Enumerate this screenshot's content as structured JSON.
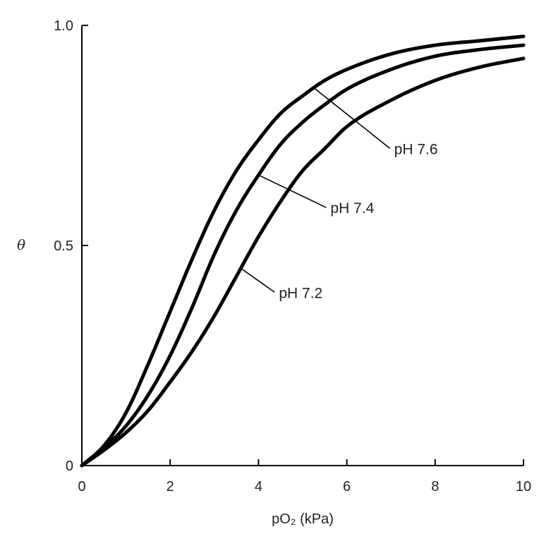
{
  "chart_data": {
    "type": "line",
    "xlabel": "pO₂ (kPa)",
    "ylabel": "θ",
    "xlim": [
      0,
      10
    ],
    "ylim": [
      0,
      1
    ],
    "x_ticks": [
      0,
      2,
      4,
      6,
      8,
      10
    ],
    "x_tick_labels": [
      "0",
      "2",
      "4",
      "6",
      "8",
      "10"
    ],
    "y_ticks": [
      0,
      0.5,
      1.0
    ],
    "y_tick_labels": [
      "0",
      "0.5",
      "1.0"
    ],
    "grid": false,
    "legend": "none",
    "series": [
      {
        "name": "pH 7.6",
        "x": [
          0,
          0.5,
          1,
          1.5,
          2,
          2.5,
          3,
          3.5,
          4,
          4.5,
          5,
          5.5,
          6,
          7,
          8,
          9,
          10
        ],
        "y": [
          0,
          0.045,
          0.12,
          0.23,
          0.35,
          0.47,
          0.58,
          0.67,
          0.74,
          0.8,
          0.84,
          0.875,
          0.9,
          0.935,
          0.955,
          0.965,
          0.975
        ]
      },
      {
        "name": "pH 7.4",
        "x": [
          0,
          0.5,
          1,
          1.5,
          2,
          2.5,
          3,
          3.5,
          4,
          4.5,
          5,
          5.5,
          6,
          7,
          8,
          9,
          10
        ],
        "y": [
          0,
          0.04,
          0.09,
          0.16,
          0.25,
          0.36,
          0.48,
          0.58,
          0.66,
          0.73,
          0.78,
          0.82,
          0.855,
          0.9,
          0.93,
          0.945,
          0.955
        ]
      },
      {
        "name": "pH 7.2",
        "x": [
          0,
          0.5,
          1,
          1.5,
          2,
          2.5,
          3,
          3.5,
          4,
          4.5,
          5,
          5.5,
          6,
          7,
          8,
          9,
          10
        ],
        "y": [
          0,
          0.035,
          0.075,
          0.125,
          0.19,
          0.26,
          0.34,
          0.43,
          0.52,
          0.6,
          0.67,
          0.72,
          0.77,
          0.83,
          0.875,
          0.905,
          0.925
        ]
      }
    ],
    "annotations": [
      {
        "text": "pH 7.6",
        "series": "pH 7.6",
        "at_x": 5.25
      },
      {
        "text": "pH 7.4",
        "series": "pH 7.4",
        "at_x": 4.0
      },
      {
        "text": "pH 7.2",
        "series": "pH 7.2",
        "at_x": 3.6
      }
    ]
  }
}
